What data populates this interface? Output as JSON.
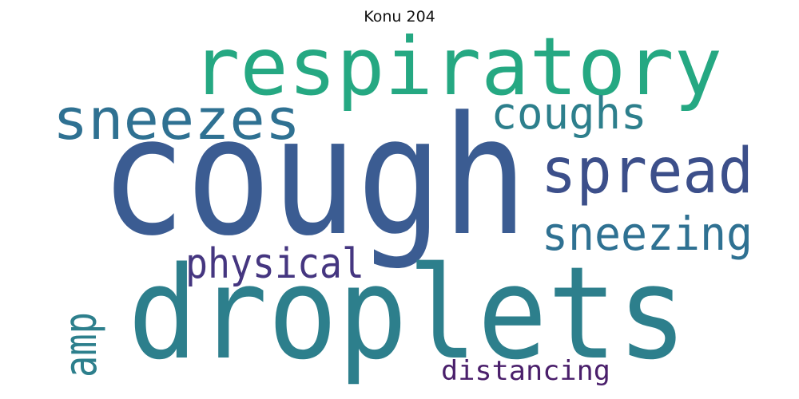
{
  "title": "Konu 204",
  "words": [
    {
      "text": "cough",
      "color": "#3b5c92"
    },
    {
      "text": "droplets",
      "color": "#2d7f8c"
    },
    {
      "text": "respiratory",
      "color": "#25a882"
    },
    {
      "text": "sneezes",
      "color": "#2f7192"
    },
    {
      "text": "coughs",
      "color": "#2d7f8c"
    },
    {
      "text": "spread",
      "color": "#3c4f8a"
    },
    {
      "text": "sneezing",
      "color": "#2f7192"
    },
    {
      "text": "physical",
      "color": "#453680"
    },
    {
      "text": "amp",
      "color": "#2d7f8c"
    },
    {
      "text": "distancing",
      "color": "#4a1f6b"
    }
  ]
}
